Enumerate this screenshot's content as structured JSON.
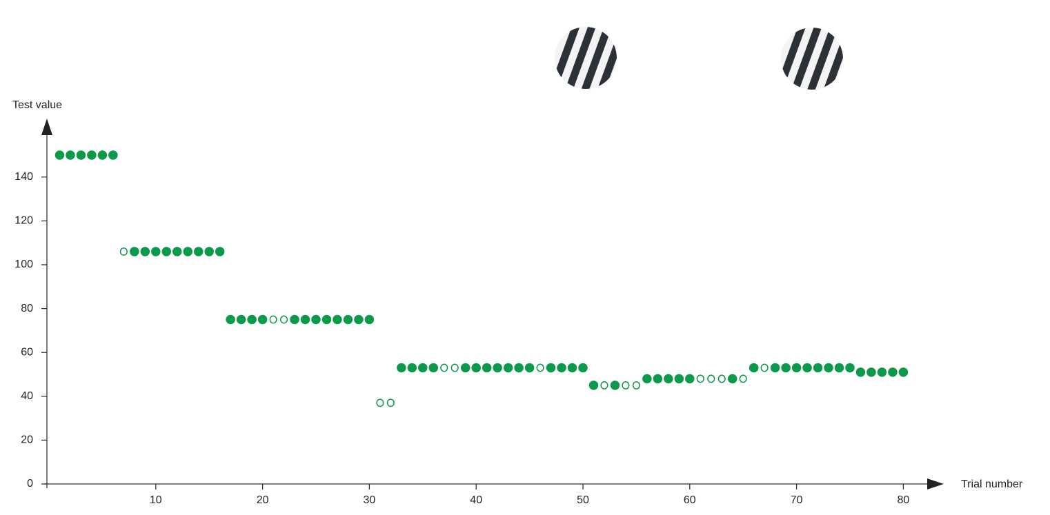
{
  "chart_data": {
    "type": "scatter",
    "x_label": "Trial number",
    "y_label": "Test value",
    "xlim": [
      0,
      84
    ],
    "ylim": [
      0,
      166
    ],
    "xticks": [
      10,
      20,
      30,
      40,
      50,
      60,
      70,
      80
    ],
    "yticks": [
      0,
      20,
      40,
      60,
      80,
      100,
      120,
      140
    ],
    "series": [
      {
        "color": "#0a9a4a",
        "filled": true,
        "x": [
          1,
          2,
          3,
          4,
          5,
          6,
          8,
          9,
          10,
          11,
          12,
          13,
          14,
          15,
          16,
          17,
          18,
          19,
          20,
          23,
          24,
          25,
          26,
          27,
          28,
          29,
          30,
          33,
          34,
          35,
          36,
          39,
          40,
          41,
          42,
          43,
          44,
          45,
          47,
          48,
          49,
          50,
          51,
          53,
          56,
          57,
          58,
          59,
          60,
          64,
          66,
          68,
          69,
          70,
          71,
          72,
          73,
          74,
          75,
          76,
          77,
          78,
          79,
          80
        ],
        "values": [
          150,
          150,
          150,
          150,
          150,
          150,
          106,
          106,
          106,
          106,
          106,
          106,
          106,
          106,
          106,
          75,
          75,
          75,
          75,
          75,
          75,
          75,
          75,
          75,
          75,
          75,
          75,
          53,
          53,
          53,
          53,
          53,
          53,
          53,
          53,
          53,
          53,
          53,
          53,
          53,
          53,
          53,
          45,
          45,
          48,
          48,
          48,
          48,
          48,
          48,
          53,
          53,
          53,
          53,
          53,
          53,
          53,
          53,
          53,
          51,
          51,
          51,
          51,
          51
        ]
      },
      {
        "color": "#0a9a4a",
        "filled": false,
        "x": [
          7,
          21,
          22,
          31,
          32,
          37,
          38,
          46,
          52,
          54,
          55,
          61,
          62,
          63,
          65,
          67
        ],
        "values": [
          106,
          75,
          75,
          37,
          37,
          53,
          53,
          53,
          45,
          45,
          45,
          48,
          48,
          48,
          48,
          53
        ]
      }
    ]
  }
}
